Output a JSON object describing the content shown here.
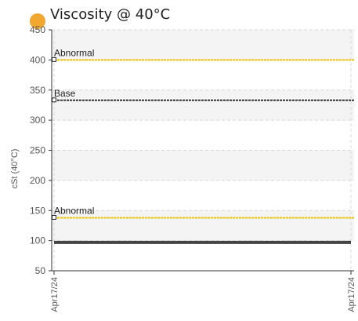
{
  "chart_data": {
    "type": "line",
    "title": "Viscosity @ 40°C",
    "ylabel": "cSt (40°C)",
    "xlabel": "",
    "ylim": [
      50,
      450
    ],
    "yticks": [
      50,
      100,
      150,
      200,
      250,
      300,
      350,
      400,
      450
    ],
    "x": [
      "Apr17/24",
      "Apr17/24"
    ],
    "grid": true,
    "reference_lines": [
      {
        "label": "Abnormal",
        "value": 400,
        "color": "#f2c200",
        "style": "dotted"
      },
      {
        "label": "Base",
        "value": 333,
        "color": "#333333",
        "style": "dotted"
      },
      {
        "label": "Abnormal",
        "value": 138,
        "color": "#f2c200",
        "style": "dotted"
      }
    ],
    "series": [
      {
        "values": [
          97,
          97
        ],
        "color": "#444444"
      }
    ]
  },
  "legend": {
    "marker_color": "#f0a830"
  }
}
